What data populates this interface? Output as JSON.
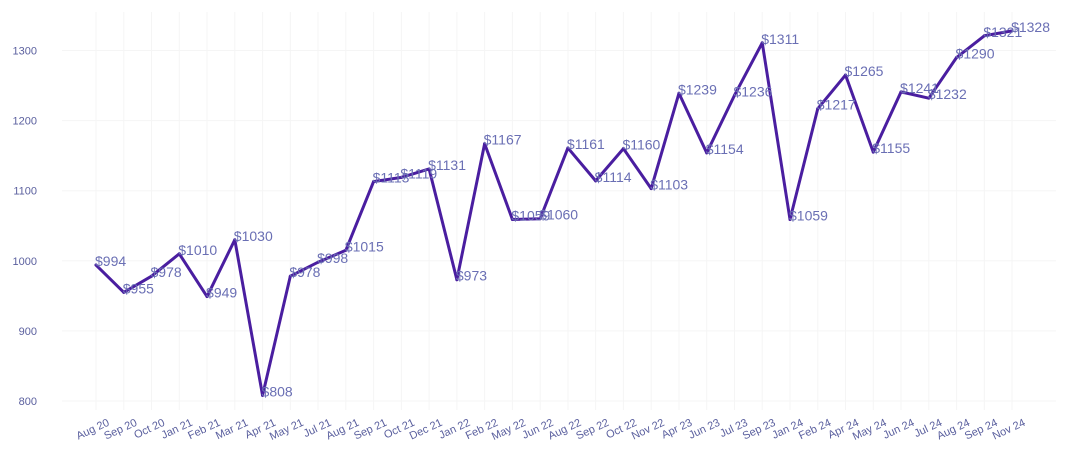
{
  "chart_data": {
    "type": "line",
    "title": "",
    "xlabel": "",
    "ylabel": "",
    "ylim": [
      780,
      1360
    ],
    "yticks": [
      800,
      900,
      1000,
      1100,
      1200,
      1300
    ],
    "grid": true,
    "legend": "none",
    "line_color": "#4a1ea0",
    "label_color": "#6a6fb4",
    "tick_color": "#5a5f9e",
    "categories": [
      "Aug 20",
      "Sep 20",
      "Oct 20",
      "Jan 21",
      "Feb 21",
      "Mar 21",
      "Apr 21",
      "May 21",
      "Jul 21",
      "Aug 21",
      "Sep 21",
      "Oct 21",
      "Dec 21",
      "Jan 22",
      "Feb 22",
      "May 22",
      "Jun 22",
      "Aug 22",
      "Sep 22",
      "Oct 22",
      "Nov 22",
      "Apr 23",
      "Jun 23",
      "Jul 23",
      "Sep 23",
      "Jan 24",
      "Feb 24",
      "Apr 24",
      "May 24",
      "Jun 24",
      "Jul 24",
      "Aug 24",
      "Sep 24",
      "Nov 24"
    ],
    "series": [
      {
        "values": [
          994,
          955,
          978,
          1010,
          949,
          1030,
          808,
          978,
          998,
          1015,
          1113,
          1119,
          1131,
          973,
          1167,
          1059,
          1060,
          1161,
          1114,
          1160,
          1103,
          1239,
          1154,
          1236,
          1311,
          1059,
          1217,
          1265,
          1155,
          1241,
          1232,
          1290,
          1321,
          1328
        ],
        "labels": [
          "$994",
          "$955",
          "$978",
          "$1010",
          "$949",
          "$1030",
          "$808",
          "$978",
          "$998",
          "$1015",
          "$1113",
          "$1119",
          "$1131",
          "$973",
          "$1167",
          "$1059",
          "$1060",
          "$1161",
          "$1114",
          "$1160",
          "$1103",
          "$1239",
          "$1154",
          "$1236",
          "$1311",
          "$1059",
          "$1217",
          "$1265",
          "$1155",
          "$1241",
          "$1232",
          "$1290",
          "$1321",
          "$1328"
        ]
      }
    ]
  }
}
